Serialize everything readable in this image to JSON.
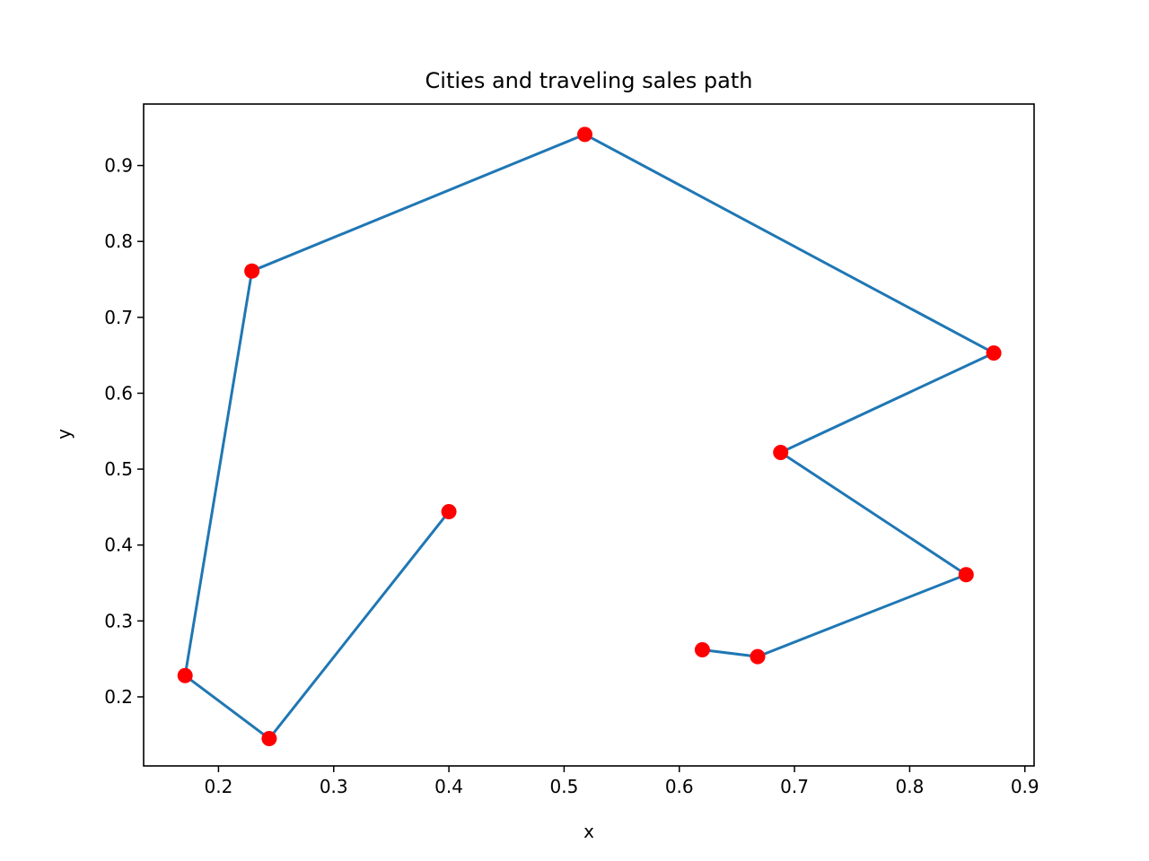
{
  "chart_data": {
    "type": "line",
    "title": "Cities and traveling sales path",
    "xlabel": "x",
    "ylabel": "y",
    "xlim": [
      0.135,
      0.908
    ],
    "ylim": [
      0.109,
      0.981
    ],
    "xticks": [
      0.2,
      0.3,
      0.4,
      0.5,
      0.6,
      0.7,
      0.8,
      0.9
    ],
    "yticks": [
      0.2,
      0.3,
      0.4,
      0.5,
      0.6,
      0.7,
      0.8,
      0.9
    ],
    "grid": false,
    "series": [
      {
        "kind": "line",
        "color": "#1f77b4",
        "points": [
          [
            0.62,
            0.262
          ],
          [
            0.668,
            0.253
          ],
          [
            0.849,
            0.361
          ],
          [
            0.688,
            0.522
          ],
          [
            0.873,
            0.653
          ],
          [
            0.518,
            0.941
          ],
          [
            0.229,
            0.761
          ],
          [
            0.171,
            0.228
          ],
          [
            0.244,
            0.145
          ],
          [
            0.4,
            0.444
          ]
        ]
      },
      {
        "kind": "scatter",
        "color": "#ff0000",
        "points": [
          [
            0.62,
            0.262
          ],
          [
            0.668,
            0.253
          ],
          [
            0.849,
            0.361
          ],
          [
            0.688,
            0.522
          ],
          [
            0.873,
            0.653
          ],
          [
            0.518,
            0.941
          ],
          [
            0.229,
            0.761
          ],
          [
            0.171,
            0.228
          ],
          [
            0.244,
            0.145
          ],
          [
            0.4,
            0.444
          ]
        ]
      }
    ]
  }
}
